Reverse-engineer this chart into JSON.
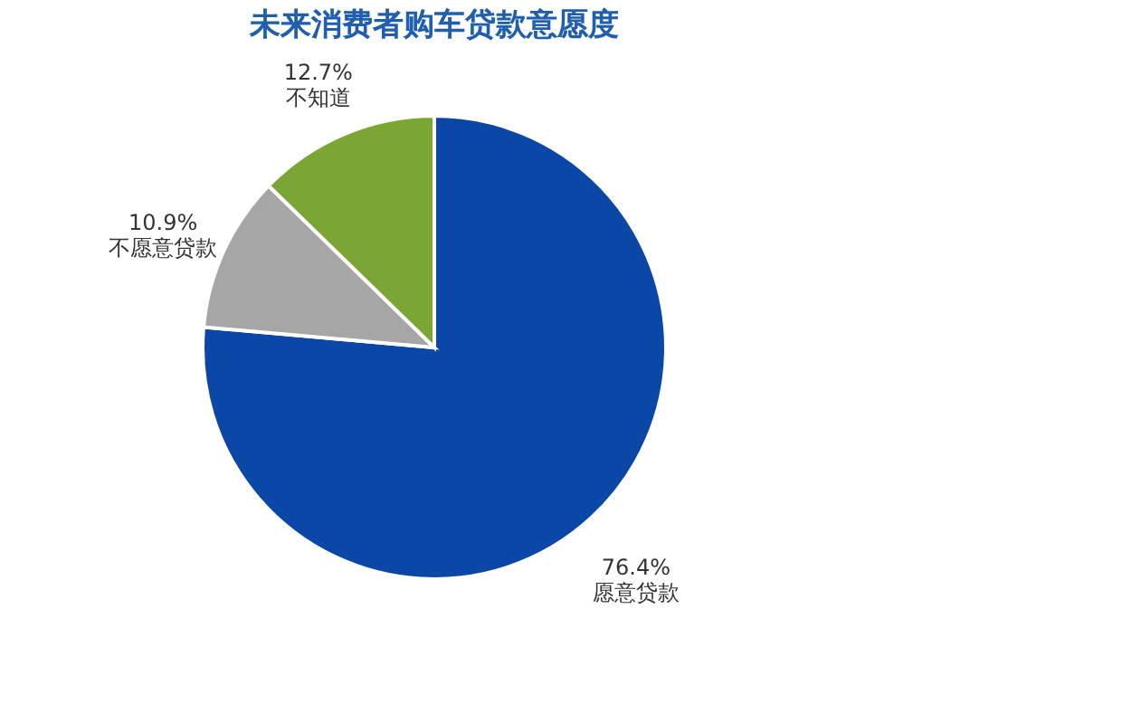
{
  "chart_data": {
    "type": "pie",
    "title": "未来消费者购车贷款意愿度",
    "categories": [
      "愿意贷款",
      "不愿意贷款",
      "不知道"
    ],
    "values": [
      76.4,
      10.9,
      12.7
    ],
    "colors": [
      "#0b47a6",
      "#a6a6a6",
      "#7aa733"
    ],
    "value_labels": [
      "76.4%",
      "10.9%",
      "12.7%"
    ],
    "legend": false
  }
}
